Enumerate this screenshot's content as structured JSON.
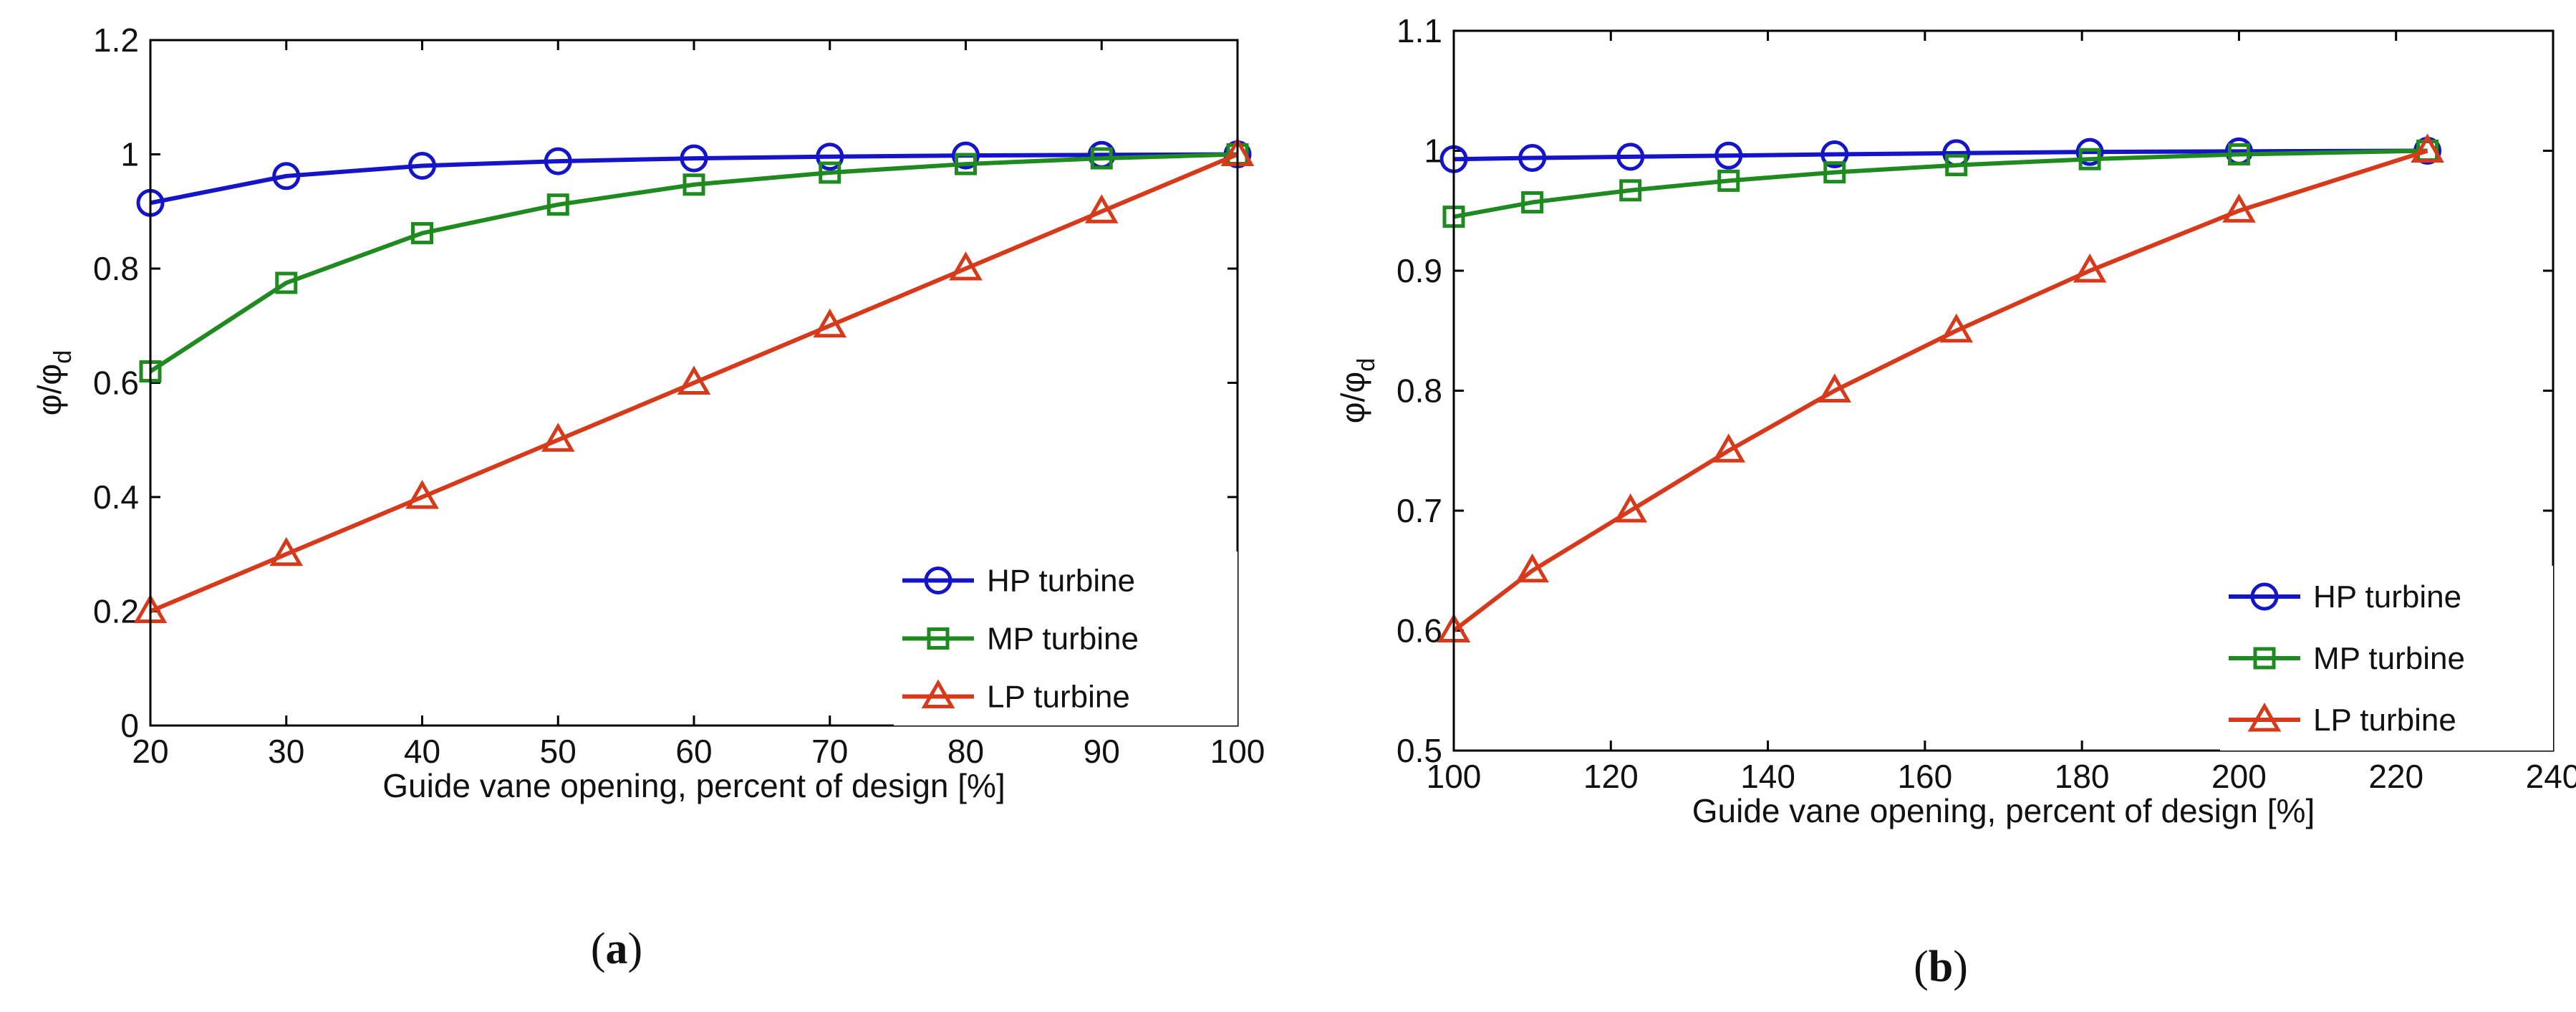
{
  "colors": {
    "hp": "#1414c8",
    "mp": "#1f8a1f",
    "lp": "#d63a1a"
  },
  "chart_data": [
    {
      "type": "line",
      "panel_label": "a",
      "xlabel": "Guide vane opening, percent of design [%]",
      "ylabel": "φ/φ",
      "ylabel_sub": "d",
      "xlim": [
        20,
        100
      ],
      "ylim": [
        0,
        1.2
      ],
      "xticks": [
        20,
        30,
        40,
        50,
        60,
        70,
        80,
        90,
        100
      ],
      "xtick_labels": [
        "20",
        "30",
        "40",
        "50",
        "60",
        "70",
        "80",
        "90",
        "100"
      ],
      "yticks": [
        0,
        0.2,
        0.4,
        0.6,
        0.8,
        1.0,
        1.2
      ],
      "ytick_labels": [
        "0",
        "0.2",
        "0.4",
        "0.6",
        "0.8",
        "1",
        "1.2"
      ],
      "legend_position": "bottom-right",
      "series": [
        {
          "name": "HP turbine",
          "marker": "circle",
          "color_key": "hp",
          "x": [
            20,
            30,
            40,
            50,
            60,
            70,
            80,
            90,
            100
          ],
          "y": [
            0.915,
            0.962,
            0.98,
            0.988,
            0.993,
            0.996,
            0.998,
            0.999,
            1.0
          ]
        },
        {
          "name": "MP turbine",
          "marker": "square",
          "color_key": "mp",
          "x": [
            20,
            30,
            40,
            50,
            60,
            70,
            80,
            90,
            100
          ],
          "y": [
            0.62,
            0.775,
            0.862,
            0.912,
            0.947,
            0.968,
            0.983,
            0.993,
            1.0
          ]
        },
        {
          "name": "LP turbine",
          "marker": "triangle",
          "color_key": "lp",
          "x": [
            20,
            30,
            40,
            50,
            60,
            70,
            80,
            90,
            100
          ],
          "y": [
            0.2,
            0.3,
            0.4,
            0.5,
            0.6,
            0.7,
            0.8,
            0.9,
            1.0
          ]
        }
      ]
    },
    {
      "type": "line",
      "panel_label": "b",
      "xlabel": "Guide vane opening, percent of design [%]",
      "ylabel": "φ/φ",
      "ylabel_sub": "d",
      "xlim": [
        100,
        240
      ],
      "ylim": [
        0.5,
        1.1
      ],
      "xticks": [
        100,
        120,
        140,
        160,
        180,
        200,
        220,
        240
      ],
      "xtick_labels": [
        "100",
        "120",
        "140",
        "160",
        "180",
        "200",
        "220",
        "240"
      ],
      "yticks": [
        0.5,
        0.6,
        0.7,
        0.8,
        0.9,
        1.0,
        1.1
      ],
      "ytick_labels": [
        "0.5",
        "0.6",
        "0.7",
        "0.8",
        "0.9",
        "1",
        "1.1"
      ],
      "legend_position": "bottom-right",
      "series": [
        {
          "name": "HP turbine",
          "marker": "circle",
          "color_key": "hp",
          "x": [
            100,
            110,
            122.5,
            135,
            148.5,
            164,
            181,
            200,
            224
          ],
          "y": [
            0.993,
            0.994,
            0.995,
            0.996,
            0.997,
            0.998,
            0.999,
            0.9995,
            1.0
          ]
        },
        {
          "name": "MP turbine",
          "marker": "square",
          "color_key": "mp",
          "x": [
            100,
            110,
            122.5,
            135,
            148.5,
            164,
            181,
            200,
            224
          ],
          "y": [
            0.945,
            0.957,
            0.967,
            0.975,
            0.982,
            0.988,
            0.993,
            0.997,
            1.0
          ]
        },
        {
          "name": "LP turbine",
          "marker": "triangle",
          "color_key": "lp",
          "x": [
            100,
            110,
            122.5,
            135,
            148.5,
            164,
            181,
            200,
            224
          ],
          "y": [
            0.6,
            0.65,
            0.7,
            0.75,
            0.8,
            0.85,
            0.9,
            0.95,
            1.0
          ]
        }
      ]
    }
  ]
}
